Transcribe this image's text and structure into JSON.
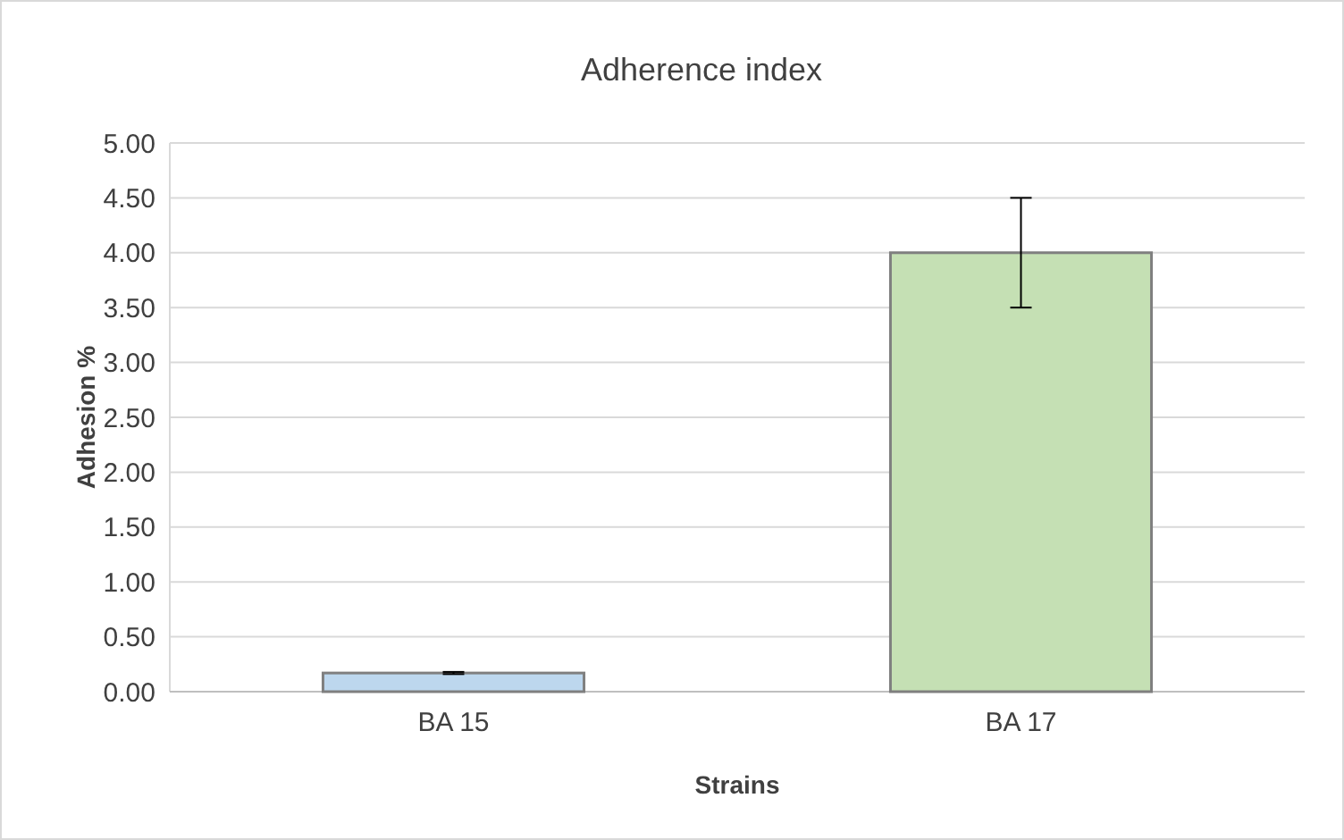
{
  "chart_data": {
    "type": "bar",
    "title": "Adherence index",
    "xlabel": "Strains",
    "ylabel": "Adhesion %",
    "categories": [
      "BA 15",
      "BA 17"
    ],
    "values": [
      0.17,
      4.0
    ],
    "colors": [
      "#bdd7ee",
      "#c5e0b4"
    ],
    "errors": [
      0.01,
      0.5
    ],
    "ylim": [
      0,
      5
    ],
    "yticks": [
      {
        "value": 0,
        "label": "0.00"
      },
      {
        "value": 0.5,
        "label": "0.50"
      },
      {
        "value": 1,
        "label": "1.00"
      },
      {
        "value": 1.5,
        "label": "1.50"
      },
      {
        "value": 2,
        "label": "2.00"
      },
      {
        "value": 2.5,
        "label": "2.50"
      },
      {
        "value": 3,
        "label": "3.00"
      },
      {
        "value": 3.5,
        "label": "3.50"
      },
      {
        "value": 4,
        "label": "4.00"
      },
      {
        "value": 4.5,
        "label": "4.50"
      },
      {
        "value": 5,
        "label": "5.00"
      }
    ],
    "grid": "y"
  }
}
